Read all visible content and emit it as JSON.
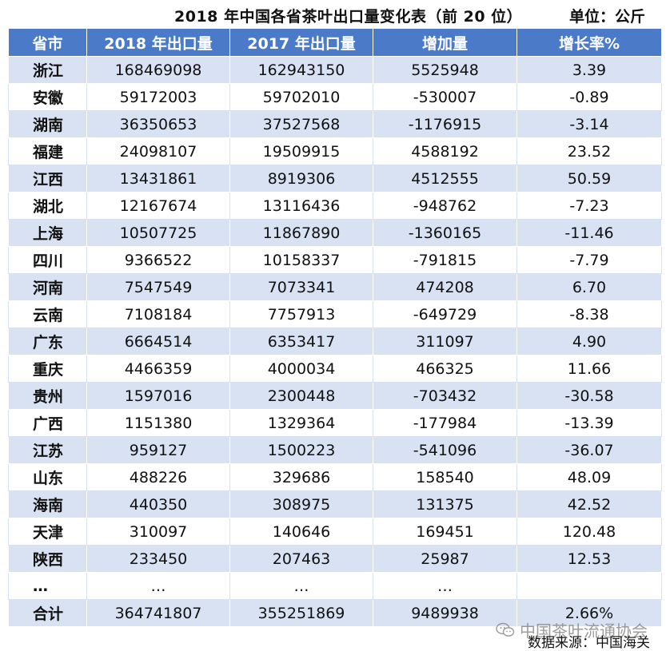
{
  "title": {
    "main": "2018 年中国各省茶叶出口量变化表（前 20 位）",
    "unit": "单位：公斤"
  },
  "table": {
    "headers": [
      "省市",
      "2018 年出口量",
      "2017 年出口量",
      "增加量",
      "增长率%"
    ],
    "rows": [
      [
        "浙江",
        "168469098",
        "162943150",
        "5525948",
        "3.39"
      ],
      [
        "安徽",
        "59172003",
        "59702010",
        "-530007",
        "-0.89"
      ],
      [
        "湖南",
        "36350653",
        "37527568",
        "-1176915",
        "-3.14"
      ],
      [
        "福建",
        "24098107",
        "19509915",
        "4588192",
        "23.52"
      ],
      [
        "江西",
        "13431861",
        "8919306",
        "4512555",
        "50.59"
      ],
      [
        "湖北",
        "12167674",
        "13116436",
        "-948762",
        "-7.23"
      ],
      [
        "上海",
        "10507725",
        "11867890",
        "-1360165",
        "-11.46"
      ],
      [
        "四川",
        "9366522",
        "10158337",
        "-791815",
        "-7.79"
      ],
      [
        "河南",
        "7547549",
        "7073341",
        "474208",
        "6.70"
      ],
      [
        "云南",
        "7108184",
        "7757913",
        "-649729",
        "-8.38"
      ],
      [
        "广东",
        "6664514",
        "6353417",
        "311097",
        "4.90"
      ],
      [
        "重庆",
        "4466359",
        "4000034",
        "466325",
        "11.66"
      ],
      [
        "贵州",
        "1597016",
        "2300448",
        "-703432",
        "-30.58"
      ],
      [
        "广西",
        "1151380",
        "1329364",
        "-177984",
        "-13.39"
      ],
      [
        "江苏",
        "959127",
        "1500223",
        "-541096",
        "-36.07"
      ],
      [
        "山东",
        "488226",
        "329686",
        "158540",
        "48.09"
      ],
      [
        "海南",
        "440350",
        "308975",
        "131375",
        "42.52"
      ],
      [
        "天津",
        "310097",
        "140646",
        "169451",
        "120.48"
      ],
      [
        "陕西",
        "233450",
        "207463",
        "25987",
        "12.53"
      ],
      [
        "…",
        "…",
        "…",
        "…",
        ""
      ],
      [
        "合计",
        "364741807",
        "355251869",
        "9489938",
        "2.66%"
      ]
    ]
  },
  "footer": {
    "watermark": "中国茶叶流通协会",
    "watermark_icon": "wechat-icon",
    "source": "数据来源：中国海关"
  },
  "colors": {
    "header_bg": "#4a7ac8",
    "stripe_bg": "#d9e2f2"
  }
}
